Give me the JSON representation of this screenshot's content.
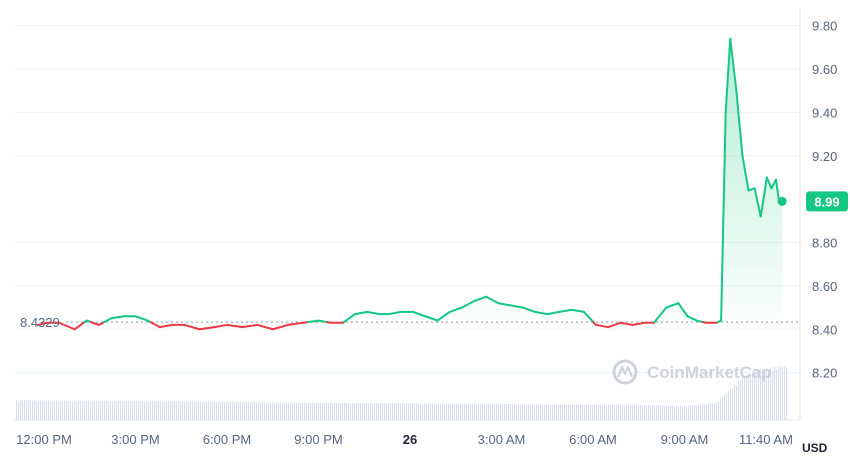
{
  "chart_data": {
    "type": "line",
    "currency": "USD",
    "reference_price": 8.4329,
    "reference_label": "8.4329",
    "last_price": 8.99,
    "last_label": "8.99",
    "ylim": [
      8.0,
      9.9
    ],
    "y_ticks": [
      {
        "value": 9.8,
        "label": "9.80"
      },
      {
        "value": 9.6,
        "label": "9.60"
      },
      {
        "value": 9.4,
        "label": "9.40"
      },
      {
        "value": 9.2,
        "label": "9.20"
      },
      {
        "value": 8.8,
        "label": "8.80"
      },
      {
        "value": 8.6,
        "label": "8.60"
      },
      {
        "value": 8.4,
        "label": "8.40"
      },
      {
        "value": 8.2,
        "label": "8.20"
      }
    ],
    "x_ticks": [
      {
        "h": 0,
        "label": "12:00 PM",
        "bold": false
      },
      {
        "h": 3,
        "label": "3:00 PM",
        "bold": false
      },
      {
        "h": 6,
        "label": "6:00 PM",
        "bold": false
      },
      {
        "h": 9,
        "label": "9:00 PM",
        "bold": false
      },
      {
        "h": 12,
        "label": "26",
        "bold": true
      },
      {
        "h": 15,
        "label": "3:00 AM",
        "bold": false
      },
      {
        "h": 18,
        "label": "6:00 AM",
        "bold": false
      },
      {
        "h": 21,
        "label": "9:00 AM",
        "bold": false
      },
      {
        "h": 23.67,
        "label": "11:40 AM",
        "bold": false
      }
    ],
    "series": [
      {
        "x_hours": [
          -0.2,
          0.1,
          0.5,
          1,
          1.4,
          1.8,
          2.2,
          2.6,
          3,
          3.4,
          3.8,
          4.2,
          4.6,
          5.1,
          5.6,
          6.0,
          6.5,
          7.0,
          7.5,
          8.0,
          8.5,
          9.0,
          9.4,
          9.8,
          10.2,
          10.6,
          11.0,
          11.3,
          11.7,
          12.1,
          12.5,
          12.9,
          13.3,
          13.7,
          14.1,
          14.5,
          14.9,
          15.3,
          15.7,
          16.1,
          16.5,
          16.9,
          17.3,
          17.7,
          18.1,
          18.5,
          18.9,
          19.3,
          19.7,
          20.0,
          20.4,
          20.8,
          21.1,
          21.4,
          21.7,
          21.9,
          22.0,
          22.05,
          22.2,
          22.35,
          22.5,
          22.7,
          22.9,
          23.1,
          23.3,
          23.5,
          23.7,
          23.85,
          24.0,
          24.1,
          24.2
        ],
        "values": [
          8.42,
          8.43,
          8.43,
          8.4,
          8.44,
          8.42,
          8.45,
          8.46,
          8.46,
          8.44,
          8.41,
          8.42,
          8.42,
          8.4,
          8.41,
          8.42,
          8.41,
          8.42,
          8.4,
          8.42,
          8.43,
          8.44,
          8.43,
          8.43,
          8.47,
          8.48,
          8.47,
          8.47,
          8.48,
          8.48,
          8.46,
          8.44,
          8.48,
          8.5,
          8.53,
          8.55,
          8.52,
          8.51,
          8.5,
          8.48,
          8.47,
          8.48,
          8.49,
          8.48,
          8.42,
          8.41,
          8.43,
          8.42,
          8.43,
          8.43,
          8.5,
          8.52,
          8.46,
          8.44,
          8.43,
          8.43,
          8.43,
          8.43,
          8.44,
          9.4,
          9.74,
          9.5,
          9.2,
          9.04,
          9.05,
          8.92,
          9.1,
          9.05,
          9.09,
          8.99,
          8.99
        ]
      }
    ],
    "volume": {
      "x_hours": [
        -1.6,
        21.2,
        22.0,
        22.5,
        23.0,
        23.5,
        24.2
      ],
      "values": [
        0.42,
        0.3,
        0.35,
        0.65,
        0.95,
        1.05,
        1.12
      ]
    }
  },
  "watermark": {
    "text": "CoinMarketCap",
    "icon": "coinmarketcap-logo-icon"
  },
  "colors": {
    "up": "#16c784",
    "down": "#ea3943",
    "grid": "#eff2f5",
    "axis_text": "#58667e"
  }
}
